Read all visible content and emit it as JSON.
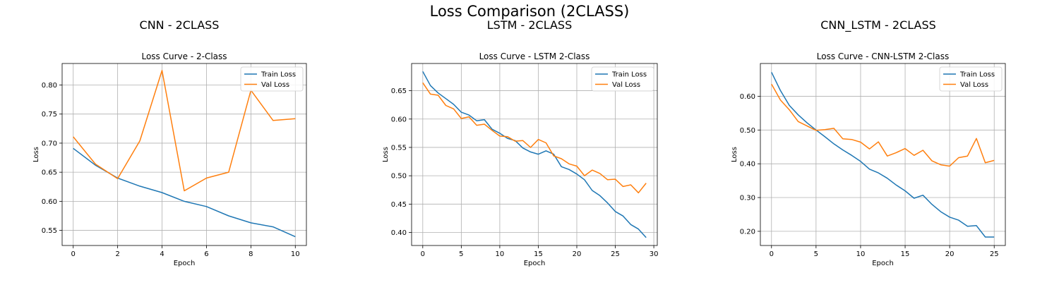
{
  "figure": {
    "title": "Loss Comparison (2CLASS)"
  },
  "colors": {
    "train": "#1f77b4",
    "val": "#ff7f0e",
    "grid": "#b0b0b0"
  },
  "chart_data": [
    {
      "type": "line",
      "panel_title": "CNN - 2CLASS",
      "title": "Loss Curve - 2-Class",
      "xlabel": "Epoch",
      "ylabel": "Loss",
      "xlim": [
        -0.5,
        10.5
      ],
      "ylim": [
        0.524,
        0.837
      ],
      "xticks": [
        0,
        2,
        4,
        6,
        8,
        10
      ],
      "yticks": [
        0.55,
        0.6,
        0.65,
        0.7,
        0.75,
        0.8
      ],
      "grid": true,
      "legend": "top-right",
      "series": [
        {
          "name": "Train Loss",
          "x": [
            0,
            1,
            2,
            3,
            4,
            5,
            6,
            7,
            8,
            9,
            10
          ],
          "y": [
            0.691,
            0.662,
            0.64,
            0.626,
            0.615,
            0.6,
            0.591,
            0.575,
            0.563,
            0.556,
            0.539
          ]
        },
        {
          "name": "Val Loss",
          "x": [
            0,
            1,
            2,
            3,
            4,
            5,
            6,
            7,
            8,
            9,
            10
          ],
          "y": [
            0.711,
            0.664,
            0.639,
            0.704,
            0.825,
            0.618,
            0.64,
            0.65,
            0.791,
            0.739,
            0.742
          ]
        }
      ]
    },
    {
      "type": "line",
      "panel_title": "LSTM - 2CLASS",
      "title": "Loss Curve - LSTM 2-Class",
      "xlabel": "Epoch",
      "ylabel": "Loss",
      "xlim": [
        -1.45,
        30.45
      ],
      "ylim": [
        0.377,
        0.698
      ],
      "xticks": [
        0,
        5,
        10,
        15,
        20,
        25,
        30
      ],
      "yticks": [
        0.4,
        0.45,
        0.5,
        0.55,
        0.6,
        0.65
      ],
      "grid": true,
      "legend": "top-right",
      "series": [
        {
          "name": "Train Loss",
          "x": [
            0,
            1,
            2,
            3,
            4,
            5,
            6,
            7,
            8,
            9,
            10,
            11,
            12,
            13,
            14,
            15,
            16,
            17,
            18,
            19,
            20,
            21,
            22,
            23,
            24,
            25,
            26,
            27,
            28,
            29
          ],
          "y": [
            0.684,
            0.659,
            0.646,
            0.636,
            0.626,
            0.612,
            0.607,
            0.597,
            0.599,
            0.582,
            0.575,
            0.566,
            0.562,
            0.549,
            0.542,
            0.538,
            0.544,
            0.538,
            0.516,
            0.511,
            0.503,
            0.493,
            0.474,
            0.465,
            0.452,
            0.437,
            0.429,
            0.414,
            0.406,
            0.391
          ]
        },
        {
          "name": "Val Loss",
          "x": [
            0,
            1,
            2,
            3,
            4,
            5,
            6,
            7,
            8,
            9,
            10,
            11,
            12,
            13,
            14,
            15,
            16,
            17,
            18,
            19,
            20,
            21,
            22,
            23,
            24,
            25,
            26,
            27,
            28,
            29
          ],
          "y": [
            0.664,
            0.644,
            0.642,
            0.624,
            0.618,
            0.601,
            0.604,
            0.589,
            0.591,
            0.58,
            0.57,
            0.569,
            0.561,
            0.562,
            0.55,
            0.564,
            0.558,
            0.535,
            0.53,
            0.521,
            0.517,
            0.5,
            0.51,
            0.504,
            0.493,
            0.494,
            0.481,
            0.484,
            0.47,
            0.487
          ]
        }
      ]
    },
    {
      "type": "line",
      "panel_title": "CNN_LSTM - 2CLASS",
      "title": "Loss Curve - CNN-LSTM 2-Class",
      "xlabel": "Epoch",
      "ylabel": "Loss",
      "xlim": [
        -1.25,
        26.25
      ],
      "ylim": [
        0.158,
        0.697
      ],
      "xticks": [
        0,
        5,
        10,
        15,
        20,
        25
      ],
      "yticks": [
        0.2,
        0.3,
        0.4,
        0.5,
        0.6
      ],
      "grid": true,
      "legend": "top-right",
      "series": [
        {
          "name": "Train Loss",
          "x": [
            0,
            1,
            2,
            3,
            4,
            5,
            6,
            7,
            8,
            9,
            10,
            11,
            12,
            13,
            14,
            15,
            16,
            17,
            18,
            19,
            20,
            21,
            22,
            23,
            24,
            25
          ],
          "y": [
            0.671,
            0.617,
            0.573,
            0.545,
            0.521,
            0.5,
            0.48,
            0.459,
            0.441,
            0.425,
            0.407,
            0.384,
            0.373,
            0.357,
            0.337,
            0.32,
            0.298,
            0.307,
            0.28,
            0.258,
            0.242,
            0.233,
            0.215,
            0.217,
            0.183,
            0.183
          ]
        },
        {
          "name": "Val Loss",
          "x": [
            0,
            1,
            2,
            3,
            4,
            5,
            6,
            7,
            8,
            9,
            10,
            11,
            12,
            13,
            14,
            15,
            16,
            17,
            18,
            19,
            20,
            21,
            22,
            23,
            24,
            25
          ],
          "y": [
            0.636,
            0.589,
            0.56,
            0.525,
            0.512,
            0.499,
            0.501,
            0.505,
            0.474,
            0.472,
            0.464,
            0.444,
            0.465,
            0.423,
            0.433,
            0.445,
            0.425,
            0.44,
            0.409,
            0.397,
            0.393,
            0.418,
            0.423,
            0.475,
            0.403,
            0.41
          ]
        }
      ]
    }
  ]
}
